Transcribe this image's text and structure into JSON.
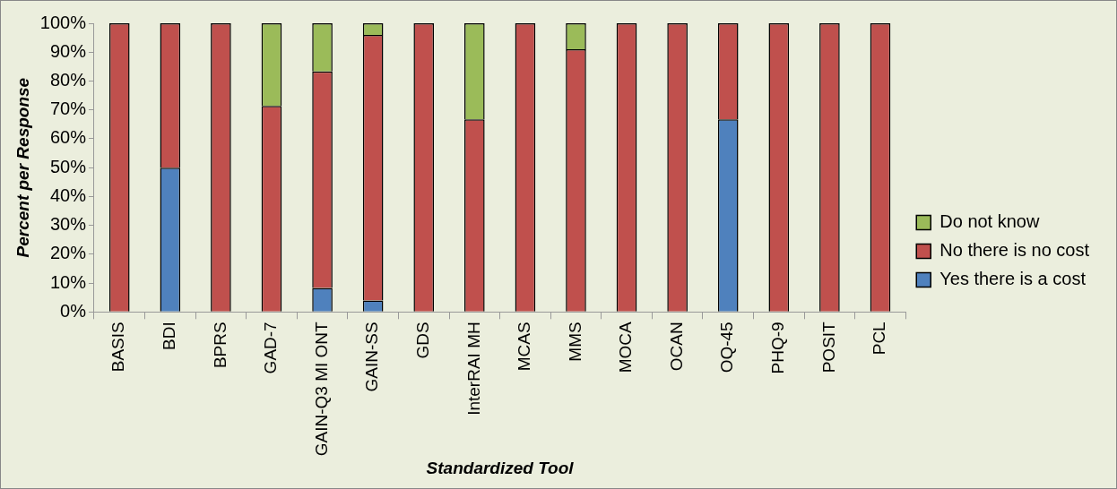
{
  "chart_data": {
    "type": "bar",
    "stacked": true,
    "xlabel": "Standardized Tool",
    "ylabel": "Percent per Response",
    "categories": [
      "BASIS",
      "BDI",
      "BPRS",
      "GAD-7",
      "GAIN-Q3 MI ONT",
      "GAIN-SS",
      "GDS",
      "InterRAI MH",
      "MCAS",
      "MMS",
      "MOCA",
      "OCAN",
      "OQ-45",
      "PHQ-9",
      "POSIT",
      "PCL"
    ],
    "series": [
      {
        "name": "Yes there is a cost",
        "color": "#4f81bd",
        "values": [
          0,
          50,
          0,
          0,
          8.3,
          4,
          0,
          0,
          0,
          0,
          0,
          0,
          66.7,
          0,
          0,
          0
        ]
      },
      {
        "name": "No there is no cost",
        "color": "#c0504d",
        "values": [
          100,
          50,
          100,
          71.4,
          75,
          92,
          100,
          66.7,
          100,
          91,
          100,
          100,
          33.3,
          100,
          100,
          100
        ]
      },
      {
        "name": "Do not know",
        "color": "#9bbb59",
        "values": [
          0,
          0,
          0,
          28.6,
          16.7,
          4,
          0,
          33.3,
          0,
          9,
          0,
          0,
          0,
          0,
          0,
          0
        ]
      }
    ],
    "ylim": [
      0,
      100
    ],
    "yticks": [
      {
        "value": 0,
        "label": "0%"
      },
      {
        "value": 10,
        "label": "10%"
      },
      {
        "value": 20,
        "label": "20%"
      },
      {
        "value": 30,
        "label": "30%"
      },
      {
        "value": 40,
        "label": "40%"
      },
      {
        "value": 50,
        "label": "50%"
      },
      {
        "value": 60,
        "label": "60%"
      },
      {
        "value": 70,
        "label": "70%"
      },
      {
        "value": 80,
        "label": "80%"
      },
      {
        "value": 90,
        "label": "90%"
      },
      {
        "value": 100,
        "label": "100%"
      }
    ],
    "grid": false,
    "legend": "right"
  }
}
